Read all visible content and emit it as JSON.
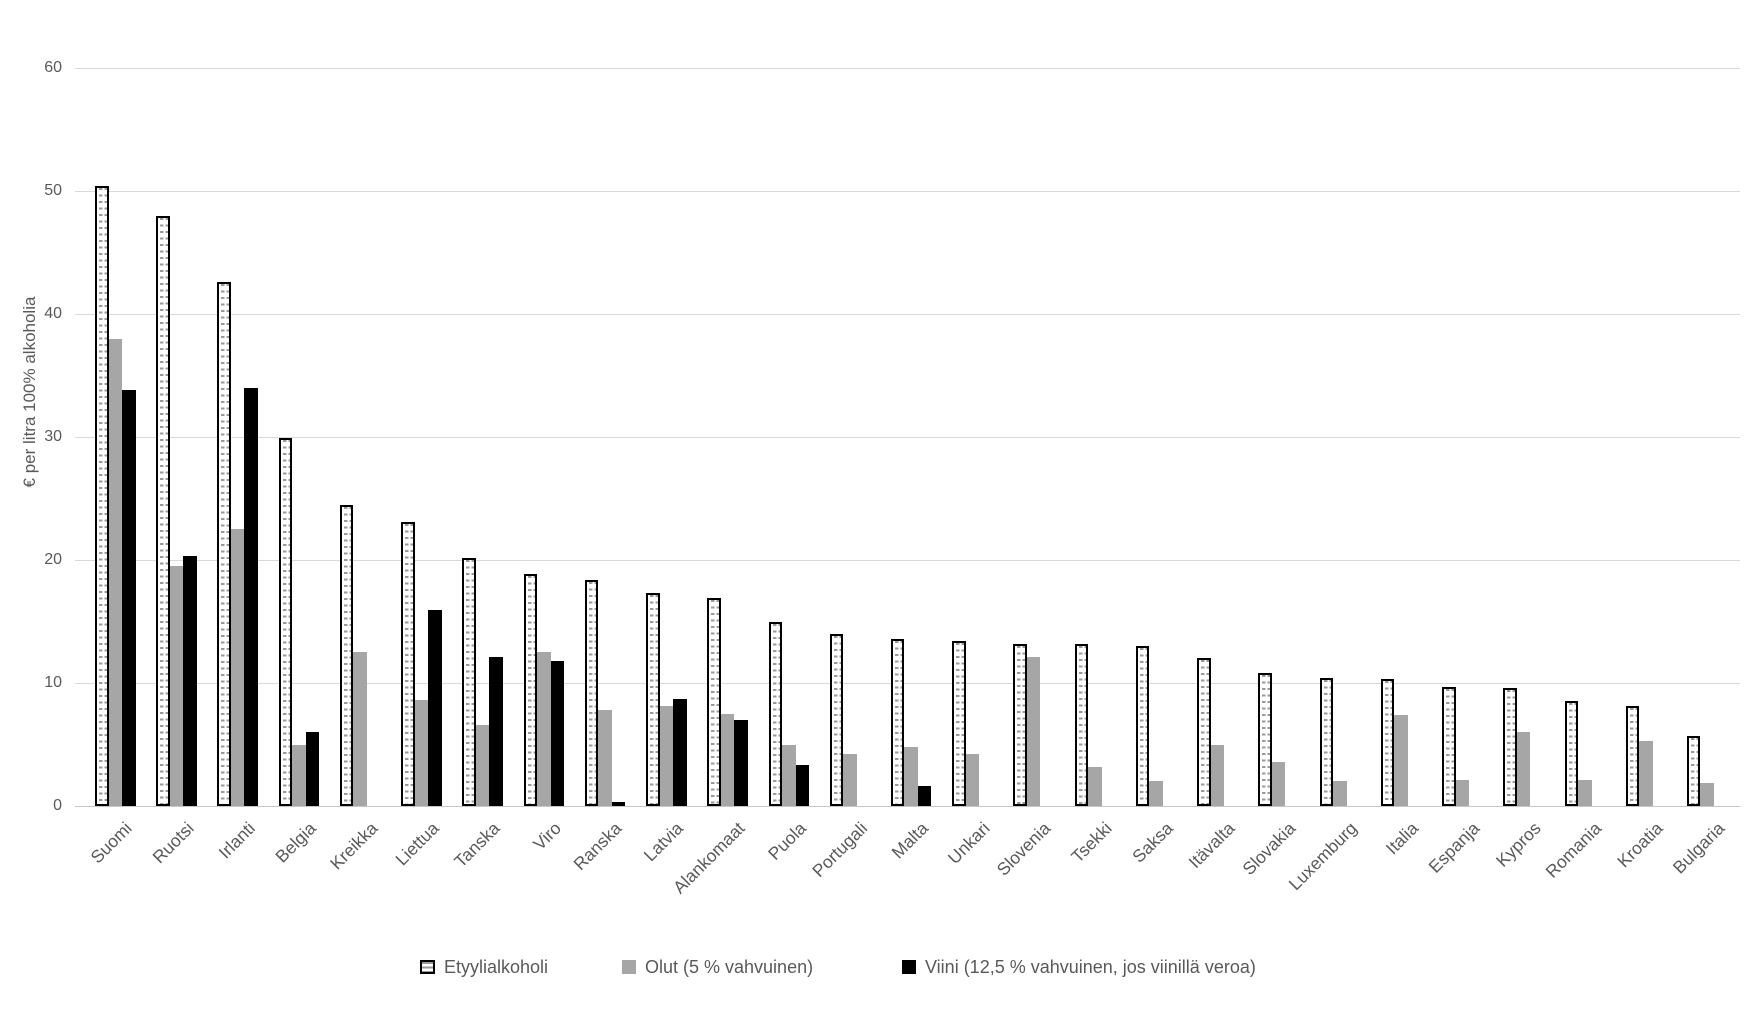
{
  "chart_data": {
    "type": "bar",
    "title": "",
    "ylabel": "€ per litra 100% alkoholia",
    "xlabel": "",
    "ylim": [
      0,
      60
    ],
    "yticks": [
      0,
      10,
      20,
      30,
      40,
      50,
      60
    ],
    "grid": "horizontal",
    "legend_position": "bottom",
    "categories": [
      "Suomi",
      "Ruotsi",
      "Irlanti",
      "Belgia",
      "Kreikka",
      "Liettua",
      "Tanska",
      "Viro",
      "Ranska",
      "Latvia",
      "Alankomaat",
      "Puola",
      "Portugali",
      "Malta",
      "Unkari",
      "Slovenia",
      "Tsekki",
      "Saksa",
      "Itävalta",
      "Slovakia",
      "Luxemburg",
      "Italia",
      "Espanja",
      "Kypros",
      "Romania",
      "Kroatia",
      "Bulgaria"
    ],
    "series": [
      {
        "name": "Etyylialkoholi",
        "style": "hatched-white-black-border",
        "values": [
          50.4,
          48.0,
          42.6,
          29.9,
          24.5,
          23.1,
          20.2,
          18.9,
          18.4,
          17.3,
          16.9,
          15.0,
          14.0,
          13.6,
          13.4,
          13.2,
          13.2,
          13.0,
          12.0,
          10.8,
          10.4,
          10.3,
          9.7,
          9.6,
          8.5,
          8.1,
          5.7
        ]
      },
      {
        "name": "Olut (5 % vahvuinen)",
        "style": "solid-gray",
        "values": [
          38.0,
          19.5,
          22.5,
          5.0,
          12.5,
          8.6,
          6.6,
          12.5,
          7.8,
          8.1,
          7.5,
          5.0,
          4.2,
          4.8,
          4.2,
          12.1,
          3.2,
          2.0,
          5.0,
          3.6,
          2.0,
          7.4,
          2.1,
          6.0,
          2.1,
          5.3,
          1.9
        ]
      },
      {
        "name": "Viini (12,5 % vahvuinen, jos viinillä veroa)",
        "style": "solid-black",
        "values": [
          33.8,
          20.3,
          34.0,
          6.0,
          0,
          15.9,
          12.1,
          11.8,
          0.3,
          8.7,
          7.0,
          3.3,
          0,
          1.6,
          0,
          0,
          0,
          0,
          0,
          0,
          0,
          0,
          0,
          0,
          0,
          0,
          0
        ]
      }
    ]
  },
  "colors": {
    "gray_bar": "#a6a6a6",
    "black_bar": "#000000",
    "hatch_line": "#9a9a9a",
    "gridline": "#d9d9d9",
    "axis_text": "#595959",
    "background": "#ffffff"
  }
}
